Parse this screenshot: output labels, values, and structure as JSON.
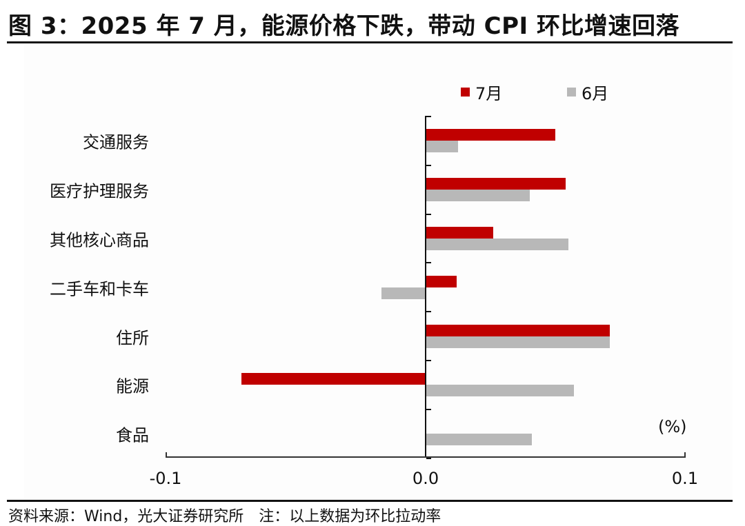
{
  "title": "图 3：2025 年 7 月，能源价格下跌，带动 CPI 环比增速回落",
  "footer": "资料来源：Wind，光大证券研究所　注：以上数据为环比拉动率",
  "unit_label": "(%)",
  "colors": {
    "jul": "#C00000",
    "jun": "#B8B8B8"
  },
  "legend": [
    {
      "label": "7月",
      "color": "#C00000"
    },
    {
      "label": "6月",
      "color": "#B8B8B8"
    }
  ],
  "x_tick_labels": [
    "-0.1",
    "0.0",
    "0.1"
  ],
  "chart_data": {
    "type": "bar",
    "orientation": "horizontal",
    "title": "图 3：2025 年 7 月，能源价格下跌，带动 CPI 环比增速回落",
    "xlabel": "(%)",
    "ylabel": "",
    "xlim": [
      -0.1,
      0.1
    ],
    "x_ticks": [
      -0.1,
      0.0,
      0.1
    ],
    "grid": false,
    "legend_position": "top-right",
    "categories": [
      "交通服务",
      "医疗护理服务",
      "其他核心商品",
      "二手车和卡车",
      "住所",
      "能源",
      "食品"
    ],
    "series": [
      {
        "name": "7月",
        "color": "#C00000",
        "values": [
          0.05,
          0.054,
          0.026,
          0.012,
          0.071,
          -0.071,
          0.0
        ]
      },
      {
        "name": "6月",
        "color": "#B8B8B8",
        "values": [
          0.0125,
          0.04,
          0.055,
          -0.017,
          0.071,
          0.057,
          0.041
        ]
      }
    ],
    "annotations": [
      "资料来源：Wind，光大证券研究所",
      "注：以上数据为环比拉动率"
    ]
  }
}
